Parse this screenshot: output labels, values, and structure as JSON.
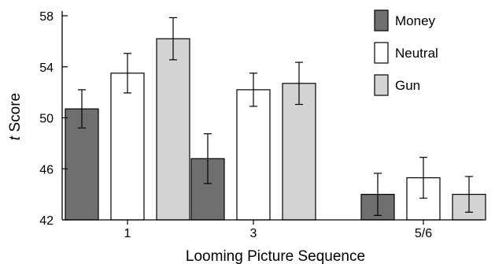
{
  "chart_data": {
    "type": "bar",
    "title": "",
    "xlabel": "Looming Picture Sequence",
    "ylabel_prefix": "t",
    "ylabel_suffix": " Score",
    "categories": [
      "1",
      "3",
      "5/6"
    ],
    "ylim": [
      42,
      58
    ],
    "yticks": [
      42,
      46,
      50,
      54,
      58
    ],
    "error_bars": true,
    "grid": false,
    "legend_position": "top-right",
    "series": [
      {
        "name": "Money",
        "color": "#6f6f6f",
        "values": [
          50.7,
          46.8,
          44.0
        ],
        "errors": [
          1.5,
          1.95,
          1.65
        ]
      },
      {
        "name": "Neutral",
        "color": "#ffffff",
        "values": [
          53.5,
          52.2,
          45.3
        ],
        "errors": [
          1.55,
          1.3,
          1.6
        ]
      },
      {
        "name": "Gun",
        "color": "#d3d3d3",
        "values": [
          56.2,
          52.7,
          44.0
        ],
        "errors": [
          1.65,
          1.65,
          1.4
        ]
      }
    ]
  }
}
